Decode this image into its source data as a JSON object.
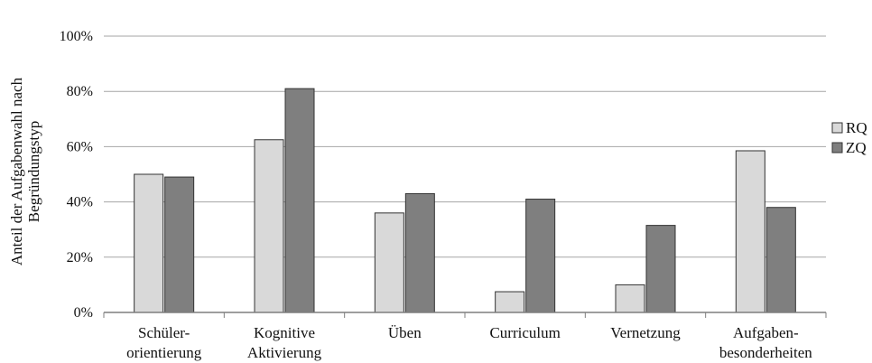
{
  "chart_data": {
    "type": "bar",
    "categories": [
      [
        "Schüler-",
        "orientierung"
      ],
      [
        "Kognitive",
        "Aktivierung"
      ],
      [
        "Üben"
      ],
      [
        "Curriculum"
      ],
      [
        "Vernetzung"
      ],
      [
        "Aufgaben-",
        "besonderheiten"
      ]
    ],
    "series": [
      {
        "name": "RQ",
        "values": [
          50,
          62.5,
          36,
          7.5,
          10,
          58.5
        ],
        "color": "#d9d9d9"
      },
      {
        "name": "ZQ",
        "values": [
          49,
          81,
          43,
          41,
          31.5,
          38
        ],
        "color": "#7f7f7f"
      }
    ],
    "ylabel": [
      "Anteil der Aufgabenwahl nach",
      "Begründungstyp"
    ],
    "ylim": [
      0,
      100
    ],
    "yticks": [
      0,
      20,
      40,
      60,
      80,
      100
    ],
    "ytick_labels": [
      "0%",
      "20%",
      "40%",
      "60%",
      "80%",
      "100%"
    ],
    "grid": true,
    "legend_position": "right"
  }
}
